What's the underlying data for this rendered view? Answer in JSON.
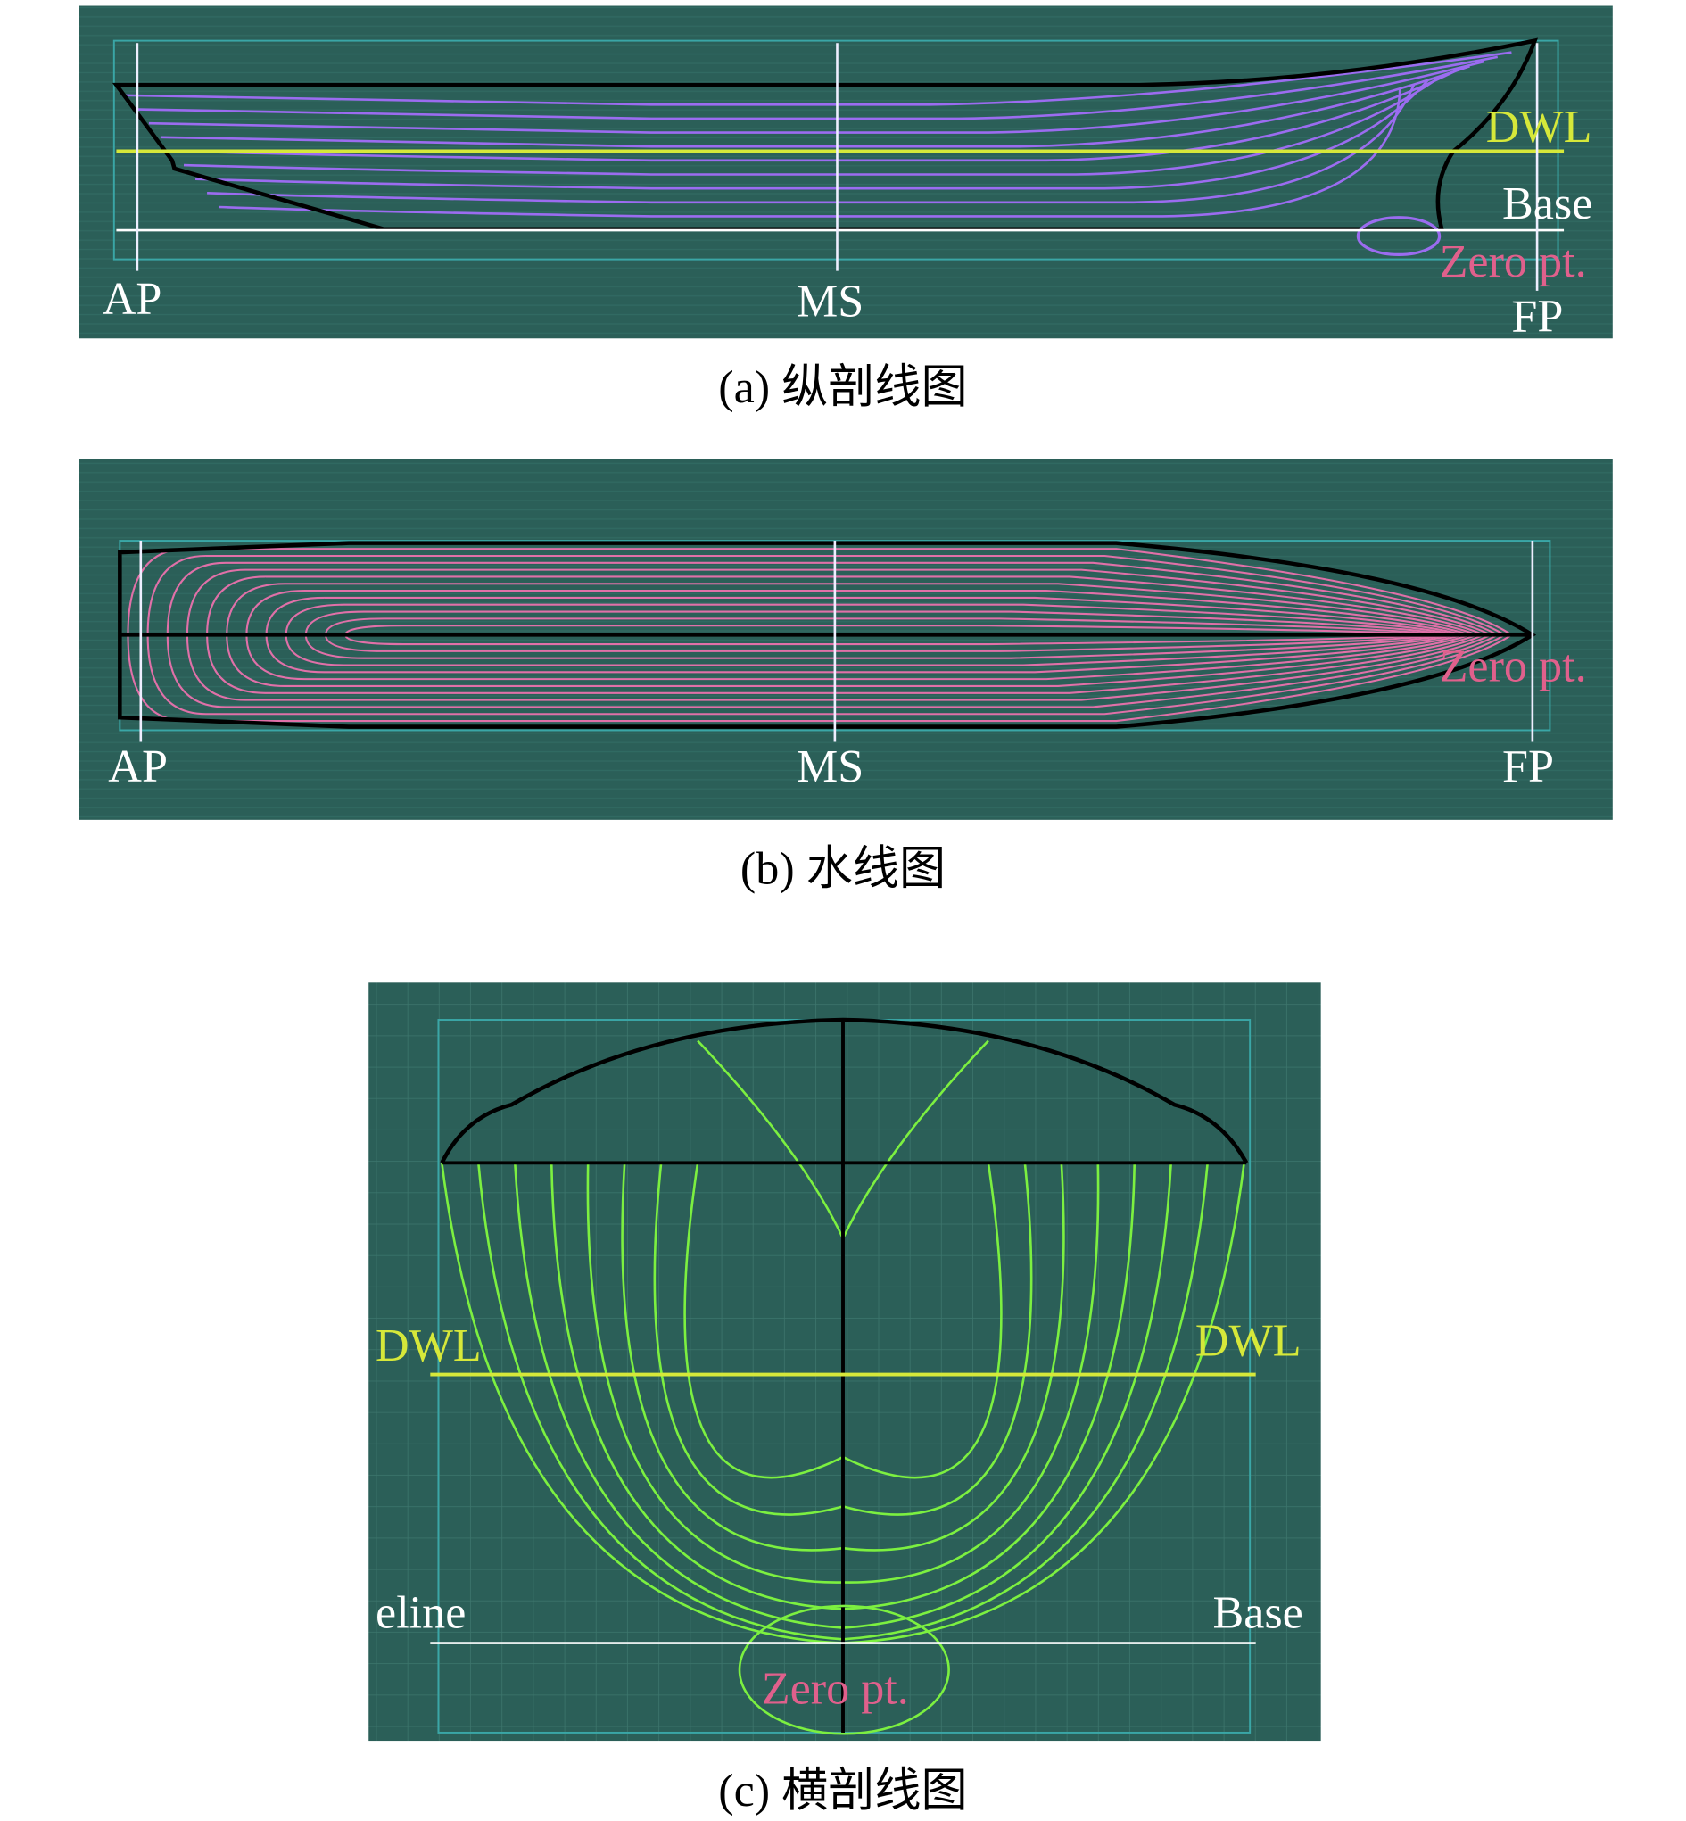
{
  "panel_a": {
    "labels": {
      "ap": "AP",
      "ms": "MS",
      "fp": "FP",
      "dwl": "DWL",
      "base": "Base",
      "zero": "Zero pt."
    },
    "caption": "(a) 纵剖线图"
  },
  "panel_b": {
    "labels": {
      "ap": "AP",
      "ms": "MS",
      "fp": "FP",
      "zero": "Zero pt."
    },
    "caption": "(b) 水线图"
  },
  "panel_c": {
    "labels": {
      "dwl_left": "DWL",
      "dwl_right": "DWL",
      "baseline_left": "eline",
      "base_right": "Base",
      "zero": "Zero pt."
    },
    "caption": "(c) 横剖线图"
  }
}
